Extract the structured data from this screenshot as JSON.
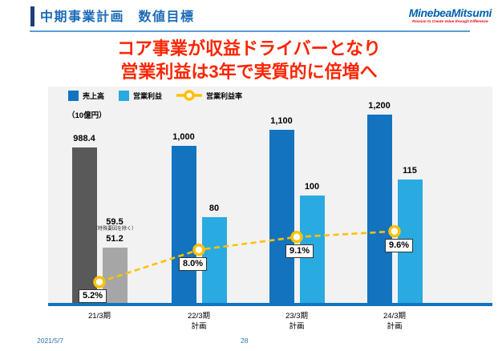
{
  "header": {
    "title": "中期事業計画　数値目標"
  },
  "brand": {
    "logo_text": "MinebeaMitsumi",
    "tagline": "Passion to Create Value through Difference"
  },
  "headline": {
    "line1": "コア事業が収益ドライバーとなり",
    "line2": "営業利益は3年で実質的に倍増へ"
  },
  "footer": {
    "date": "2021/5/7",
    "page": "28"
  },
  "chart_data": {
    "type": "bar+line",
    "title": "",
    "unit_label": "（10億円）",
    "legend": [
      {
        "label": "売上高",
        "color": "#1373be",
        "kind": "square"
      },
      {
        "label": "営業利益",
        "color": "#29abe2",
        "kind": "square"
      },
      {
        "label": "営業利益率",
        "color": "#ffc000",
        "kind": "line-marker"
      }
    ],
    "categories": [
      "21/3期",
      "22/3期 計画",
      "23/3期 計画",
      "24/3期 計画"
    ],
    "series": [
      {
        "name": "売上高",
        "values": [
          988.4,
          1000,
          1100,
          1200
        ]
      },
      {
        "name": "営業利益",
        "values": [
          51.2,
          80,
          100,
          115
        ]
      },
      {
        "name": "営業利益率",
        "values": [
          5.2,
          8.0,
          9.1,
          9.6
        ]
      }
    ],
    "groups": [
      {
        "cat1": "21/3期",
        "cat2": "",
        "revenue": 988.4,
        "revenue_label": "988.4",
        "profit": 51.2,
        "profit_label": "51.2",
        "ratio": 5.2,
        "ratio_label": "5.2%",
        "is_actual": true,
        "profit_note_value": "59.5",
        "profit_note": "（特殊要因を除く）"
      },
      {
        "cat1": "22/3期",
        "cat2": "計画",
        "revenue": 1000,
        "revenue_label": "1,000",
        "profit": 80,
        "profit_label": "80",
        "ratio": 8.0,
        "ratio_label": "8.0%",
        "is_actual": false
      },
      {
        "cat1": "23/3期",
        "cat2": "計画",
        "revenue": 1100,
        "revenue_label": "1,100",
        "profit": 100,
        "profit_label": "100",
        "ratio": 9.1,
        "ratio_label": "9.1%",
        "is_actual": false
      },
      {
        "cat1": "24/3期",
        "cat2": "計画",
        "revenue": 1200,
        "revenue_label": "1,200",
        "profit": 115,
        "profit_label": "115",
        "ratio": 9.6,
        "ratio_label": "9.6%",
        "is_actual": false
      }
    ],
    "colors": {
      "revenue_plan": "#1373be",
      "profit_plan": "#29abe2",
      "revenue_actual": "#595959",
      "profit_actual": "#a6a6a6",
      "ratio_line": "#ffc000",
      "baseline": "#1373be"
    },
    "axis": {
      "grid": false,
      "legend_position": "top-left",
      "note": "revenue and profit drawn on separate implicit scales; ratio on secondary axis"
    }
  }
}
